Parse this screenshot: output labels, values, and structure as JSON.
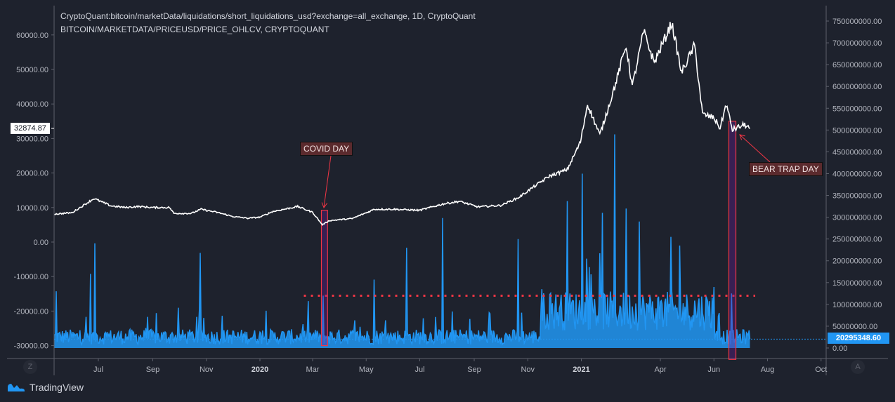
{
  "header": {
    "line1": "CryptoQuant:bitcoin/marketData/liquidations/short_liquidations_usd?exchange=all_exchange, 1D, CryptoQuant",
    "line2": "BITCOIN/MARKETDATA/PRICEUSD/PRICE_OHLCV, CRYPTOQUANT"
  },
  "branding": {
    "logo_text": "TradingView",
    "left_corner": "Z",
    "right_corner": "A"
  },
  "colors": {
    "background": "#1e222d",
    "price_line": "#ffffff",
    "liquidations": "#2196f3",
    "annotation_red": "#f23645",
    "annotation_box": "#5b2a2d"
  },
  "chart_data": {
    "type": "line",
    "grid": false,
    "x_range": [
      "2019-05-12",
      "2021-10-01"
    ],
    "x_tick_labels": [
      "Jul",
      "Sep",
      "Nov",
      "2020",
      "Mar",
      "May",
      "Jul",
      "Sep",
      "Nov",
      "2021",
      "Apr",
      "Jun",
      "Aug",
      "Oct"
    ],
    "x_tick_dates": [
      "2019-07-01",
      "2019-09-01",
      "2019-11-01",
      "2020-01-01",
      "2020-03-01",
      "2020-05-01",
      "2020-07-01",
      "2020-09-01",
      "2020-11-01",
      "2021-01-01",
      "2021-04-01",
      "2021-06-01",
      "2021-08-01",
      "2021-10-01"
    ],
    "left_axis": {
      "ylim": [
        -33000,
        68000
      ],
      "tick_labels": [
        "60000.00",
        "50000.00",
        "40000.00",
        "30000.00",
        "20000.00",
        "10000.00",
        "0.00",
        "-10000.00",
        "-20000.00",
        "-30000.00"
      ],
      "ticks": [
        60000,
        50000,
        40000,
        30000,
        20000,
        10000,
        0,
        -10000,
        -20000,
        -30000
      ],
      "last_value_label": "32874.87"
    },
    "right_axis": {
      "ylim": [
        -25000000,
        800000000
      ],
      "tick_labels": [
        "750000000.00",
        "700000000.00",
        "650000000.00",
        "600000000.00",
        "550000000.00",
        "500000000.00",
        "450000000.00",
        "400000000.00",
        "350000000.00",
        "300000000.00",
        "250000000.00",
        "200000000.00",
        "150000000.00",
        "100000000.00",
        "50000000.00",
        "0.00"
      ],
      "ticks": [
        750000000,
        700000000,
        650000000,
        600000000,
        550000000,
        500000000,
        450000000,
        400000000,
        350000000,
        300000000,
        250000000,
        200000000,
        150000000,
        100000000,
        50000000,
        0
      ],
      "last_value_label": "20295348.60"
    },
    "series": [
      {
        "name": "BITCOIN/MARKETDATA/PRICEUSD/PRICE_OHLCV, CRYPTOQUANT",
        "axis": "left",
        "color": "#ffffff",
        "points": [
          [
            "2019-05-12",
            8100
          ],
          [
            "2019-06-01",
            8500
          ],
          [
            "2019-06-26",
            12600
          ],
          [
            "2019-07-15",
            10500
          ],
          [
            "2019-08-01",
            10000
          ],
          [
            "2019-08-15",
            10300
          ],
          [
            "2019-09-01",
            10000
          ],
          [
            "2019-09-20",
            10000
          ],
          [
            "2019-09-25",
            8300
          ],
          [
            "2019-10-15",
            8300
          ],
          [
            "2019-10-26",
            9500
          ],
          [
            "2019-11-15",
            8500
          ],
          [
            "2019-12-01",
            7400
          ],
          [
            "2019-12-18",
            6900
          ],
          [
            "2020-01-01",
            7200
          ],
          [
            "2020-01-15",
            8800
          ],
          [
            "2020-02-13",
            10300
          ],
          [
            "2020-03-01",
            8600
          ],
          [
            "2020-03-12",
            5000
          ],
          [
            "2020-03-20",
            6200
          ],
          [
            "2020-04-15",
            6800
          ],
          [
            "2020-05-05",
            8900
          ],
          [
            "2020-05-10",
            9500
          ],
          [
            "2020-06-01",
            9500
          ],
          [
            "2020-07-01",
            9200
          ],
          [
            "2020-07-27",
            11000
          ],
          [
            "2020-08-15",
            11800
          ],
          [
            "2020-09-05",
            10200
          ],
          [
            "2020-10-01",
            10600
          ],
          [
            "2020-10-21",
            12800
          ],
          [
            "2020-11-05",
            15500
          ],
          [
            "2020-11-25",
            19000
          ],
          [
            "2020-12-16",
            21000
          ],
          [
            "2020-12-31",
            29000
          ],
          [
            "2021-01-08",
            40000
          ],
          [
            "2021-01-22",
            31000
          ],
          [
            "2021-02-08",
            45000
          ],
          [
            "2021-02-21",
            57000
          ],
          [
            "2021-02-28",
            45000
          ],
          [
            "2021-03-13",
            61000
          ],
          [
            "2021-03-25",
            52000
          ],
          [
            "2021-04-14",
            63500
          ],
          [
            "2021-04-25",
            49000
          ],
          [
            "2021-05-10",
            57000
          ],
          [
            "2021-05-19",
            37000
          ],
          [
            "2021-06-01",
            36000
          ],
          [
            "2021-06-08",
            33000
          ],
          [
            "2021-06-15",
            40000
          ],
          [
            "2021-06-22",
            32500
          ],
          [
            "2021-07-06",
            34000
          ],
          [
            "2021-07-12",
            32874.87
          ]
        ]
      },
      {
        "name": "CryptoQuant:bitcoin/marketData/liquidations/short_liquidations_usd?exchange=all_exchange, 1D, CryptoQuant",
        "axis": "right",
        "color": "#2196f3",
        "type": "area",
        "spikes": [
          [
            "2019-05-14",
            130000000
          ],
          [
            "2019-06-22",
            170000000
          ],
          [
            "2019-06-27",
            240000000
          ],
          [
            "2019-10-25",
            218000000
          ],
          [
            "2020-03-13",
            120000000
          ],
          [
            "2020-05-10",
            157000000
          ],
          [
            "2020-06-16",
            230000000
          ],
          [
            "2020-07-27",
            298000000
          ],
          [
            "2020-10-21",
            250000000
          ],
          [
            "2020-12-16",
            337000000
          ],
          [
            "2021-01-02",
            400000000
          ],
          [
            "2021-01-25",
            310000000
          ],
          [
            "2021-02-08",
            490000000
          ],
          [
            "2021-02-21",
            320000000
          ],
          [
            "2021-03-08",
            290000000
          ],
          [
            "2021-04-13",
            255000000
          ],
          [
            "2021-04-23",
            235000000
          ],
          [
            "2021-06-01",
            140000000
          ],
          [
            "2021-06-21",
            125000000
          ]
        ],
        "last_value": 20295348.6
      }
    ],
    "annotations": [
      {
        "label": "COVID DAY",
        "from": "2020-03-11",
        "to": "2020-03-18",
        "price_top": 9200,
        "price_bottom": -30000
      },
      {
        "label": "BEAR TRAP DAY",
        "from": "2021-06-18",
        "to": "2021-06-26",
        "price_top": 35000,
        "price_bottom": -34000
      }
    ],
    "reference_line": {
      "axis": "right",
      "value": 120000000,
      "from": "2020-02-20",
      "to": "2021-07-18",
      "style": "dotted",
      "color": "#f23645"
    }
  }
}
